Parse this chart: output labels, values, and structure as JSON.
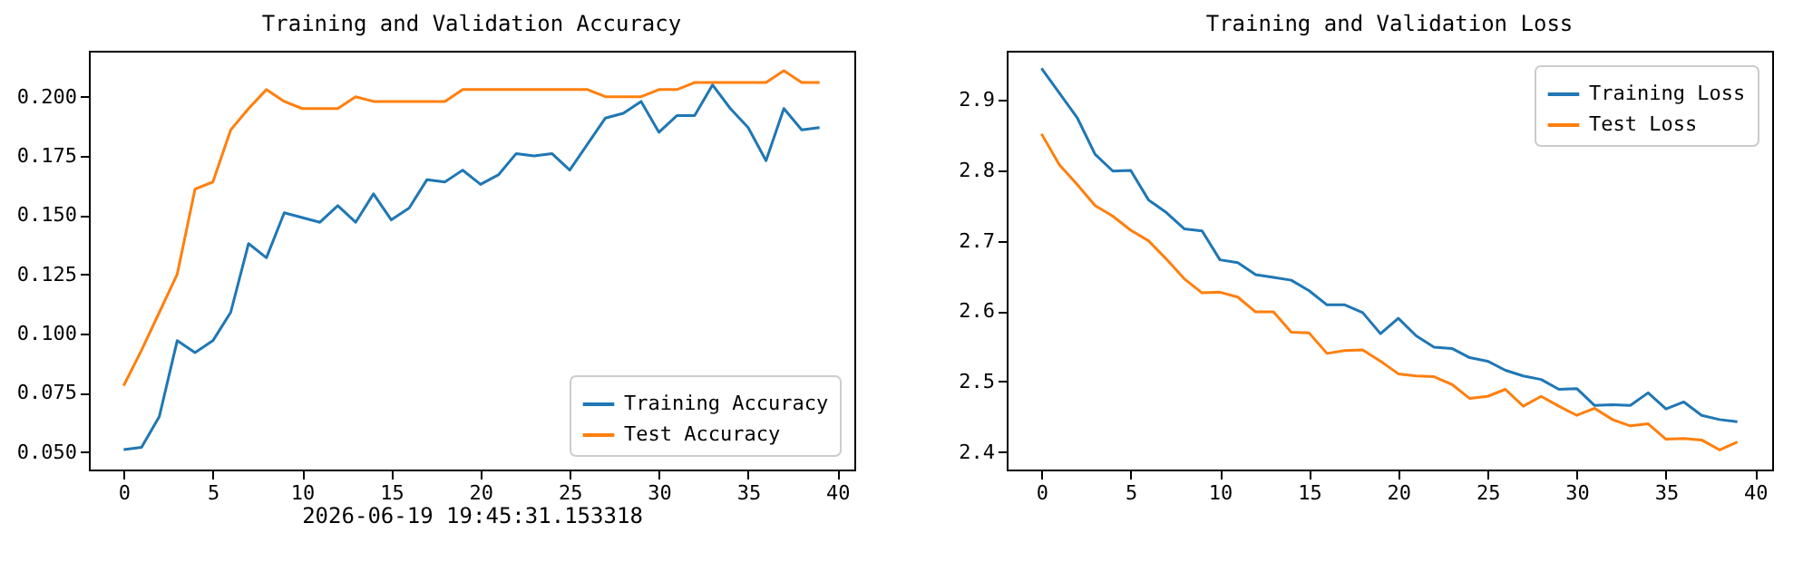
{
  "chart_data": [
    {
      "type": "line",
      "title": "Training and Validation Accuracy",
      "xlabel": "2026-06-19 19:45:31.153318",
      "x": [
        0,
        1,
        2,
        3,
        4,
        5,
        6,
        7,
        8,
        9,
        10,
        11,
        12,
        13,
        14,
        15,
        16,
        17,
        18,
        19,
        20,
        21,
        22,
        23,
        24,
        25,
        26,
        27,
        28,
        29,
        30,
        31,
        32,
        33,
        34,
        35,
        36,
        37,
        38,
        39
      ],
      "series": [
        {
          "name": "Training Accuracy",
          "color": "#1f77b4",
          "values": [
            0.051,
            0.052,
            0.065,
            0.097,
            0.092,
            0.097,
            0.109,
            0.138,
            0.132,
            0.151,
            0.149,
            0.147,
            0.154,
            0.147,
            0.159,
            0.148,
            0.153,
            0.165,
            0.164,
            0.169,
            0.163,
            0.167,
            0.176,
            0.175,
            0.176,
            0.169,
            0.18,
            0.191,
            0.193,
            0.198,
            0.185,
            0.192,
            0.192,
            0.205,
            0.195,
            0.187,
            0.173,
            0.195,
            0.186,
            0.187
          ]
        },
        {
          "name": "Test Accuracy",
          "color": "#ff7f0e",
          "values": [
            0.078,
            0.093,
            0.109,
            0.125,
            0.161,
            0.164,
            0.186,
            0.195,
            0.203,
            0.198,
            0.195,
            0.195,
            0.195,
            0.2,
            0.198,
            0.198,
            0.198,
            0.198,
            0.198,
            0.203,
            0.203,
            0.203,
            0.203,
            0.203,
            0.203,
            0.203,
            0.203,
            0.2,
            0.2,
            0.2,
            0.203,
            0.203,
            0.206,
            0.206,
            0.206,
            0.206,
            0.206,
            0.211,
            0.206,
            0.206
          ]
        }
      ],
      "xlim": [
        -1.95,
        40.95
      ],
      "xticks": [
        0,
        5,
        10,
        15,
        20,
        25,
        30,
        35,
        40
      ],
      "ylim": [
        0.0426,
        0.2194
      ],
      "yticks": [
        {
          "value": 0.05,
          "label": "0.050"
        },
        {
          "value": 0.075,
          "label": "0.075"
        },
        {
          "value": 0.1,
          "label": "0.100"
        },
        {
          "value": 0.125,
          "label": "0.125"
        },
        {
          "value": 0.15,
          "label": "0.150"
        },
        {
          "value": 0.175,
          "label": "0.175"
        },
        {
          "value": 0.2,
          "label": "0.200"
        }
      ],
      "legend": "bottom right",
      "grid": false
    },
    {
      "type": "line",
      "title": "Training and Validation Loss",
      "x": [
        0,
        1,
        2,
        3,
        4,
        5,
        6,
        7,
        8,
        9,
        10,
        11,
        12,
        13,
        14,
        15,
        16,
        17,
        18,
        19,
        20,
        21,
        22,
        23,
        24,
        25,
        26,
        27,
        28,
        29,
        30,
        31,
        32,
        33,
        34,
        35,
        36,
        37,
        38,
        39
      ],
      "series": [
        {
          "name": "Training Loss",
          "color": "#1f77b4",
          "values": [
            2.945,
            2.91,
            2.875,
            2.823,
            2.799,
            2.8,
            2.758,
            2.74,
            2.717,
            2.714,
            2.673,
            2.669,
            2.652,
            2.648,
            2.644,
            2.629,
            2.609,
            2.609,
            2.598,
            2.568,
            2.59,
            2.565,
            2.549,
            2.547,
            2.534,
            2.529,
            2.516,
            2.508,
            2.503,
            2.489,
            2.49,
            2.466,
            2.467,
            2.466,
            2.484,
            2.461,
            2.471,
            2.452,
            2.446,
            2.443
          ]
        },
        {
          "name": "Test Loss",
          "color": "#ff7f0e",
          "values": [
            2.852,
            2.808,
            2.78,
            2.75,
            2.735,
            2.715,
            2.7,
            2.674,
            2.646,
            2.626,
            2.627,
            2.62,
            2.599,
            2.599,
            2.57,
            2.569,
            2.54,
            2.544,
            2.545,
            2.529,
            2.511,
            2.508,
            2.507,
            2.496,
            2.476,
            2.479,
            2.489,
            2.465,
            2.479,
            2.465,
            2.452,
            2.462,
            2.446,
            2.437,
            2.44,
            2.418,
            2.419,
            2.417,
            2.403,
            2.414
          ]
        }
      ],
      "xlim": [
        -1.95,
        40.95
      ],
      "xticks": [
        0,
        5,
        10,
        15,
        20,
        25,
        30,
        35,
        40
      ],
      "ylim": [
        2.375,
        2.97
      ],
      "yticks": [
        2.4,
        2.5,
        2.6,
        2.7,
        2.8,
        2.9
      ],
      "legend": "top right",
      "grid": false
    }
  ]
}
